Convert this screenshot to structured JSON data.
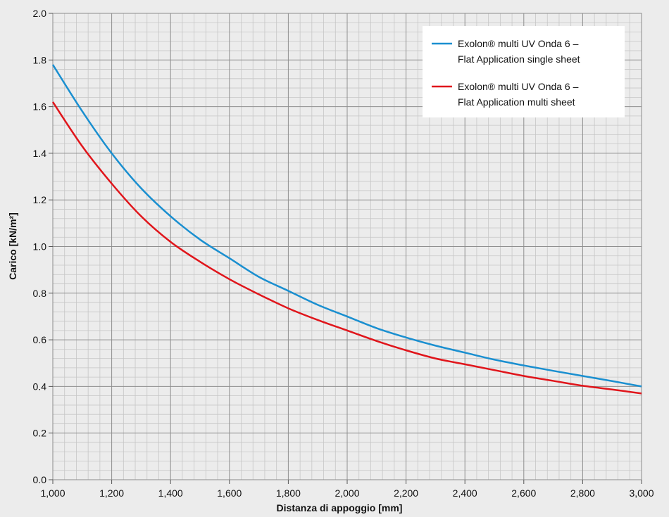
{
  "chart_data": {
    "type": "line",
    "xlabel": "Distanza di appoggio [mm]",
    "ylabel": "Carico [kN/m²]",
    "xlim": [
      1000,
      3000
    ],
    "ylim": [
      0,
      2.0
    ],
    "x_ticks": [
      1000,
      1200,
      1400,
      1600,
      1800,
      2000,
      2200,
      2400,
      2600,
      2800,
      3000
    ],
    "x_tick_labels": [
      "1,000",
      "1,200",
      "1,400",
      "1,600",
      "1,800",
      "2,000",
      "2,200",
      "2,400",
      "2,600",
      "2,800",
      "3,000"
    ],
    "y_ticks": [
      0,
      0.2,
      0.4,
      0.6,
      0.8,
      1.0,
      1.2,
      1.4,
      1.6,
      1.8,
      2.0
    ],
    "y_tick_labels": [
      "0.0",
      "0.2",
      "0.4",
      "0.6",
      "0.8",
      "1.0",
      "1.2",
      "1.4",
      "1.6",
      "1.8",
      "2.0"
    ],
    "grid": true,
    "minor_grid": true,
    "legend_position": "top-right",
    "series": [
      {
        "name_line1": "Exolon® multi UV Onda 6 –",
        "name_line2": "Flat Application single sheet",
        "color": "#1a8fd0",
        "x": [
          1000,
          1100,
          1200,
          1300,
          1400,
          1500,
          1600,
          1700,
          1800,
          1900,
          2000,
          2100,
          2200,
          2300,
          2400,
          2500,
          2600,
          2700,
          2800,
          2900,
          3000
        ],
        "y": [
          1.78,
          1.58,
          1.4,
          1.25,
          1.13,
          1.03,
          0.95,
          0.87,
          0.81,
          0.75,
          0.7,
          0.65,
          0.61,
          0.575,
          0.545,
          0.515,
          0.49,
          0.467,
          0.445,
          0.423,
          0.4
        ]
      },
      {
        "name_line1": "Exolon® multi UV Onda 6 –",
        "name_line2": "Flat Application multi sheet",
        "color": "#e0151b",
        "x": [
          1000,
          1100,
          1200,
          1300,
          1400,
          1500,
          1600,
          1700,
          1800,
          1900,
          2000,
          2100,
          2200,
          2300,
          2400,
          2500,
          2600,
          2700,
          2800,
          2900,
          3000
        ],
        "y": [
          1.62,
          1.43,
          1.27,
          1.13,
          1.02,
          0.935,
          0.86,
          0.795,
          0.735,
          0.685,
          0.64,
          0.595,
          0.555,
          0.52,
          0.495,
          0.47,
          0.445,
          0.424,
          0.403,
          0.387,
          0.37
        ]
      }
    ]
  }
}
